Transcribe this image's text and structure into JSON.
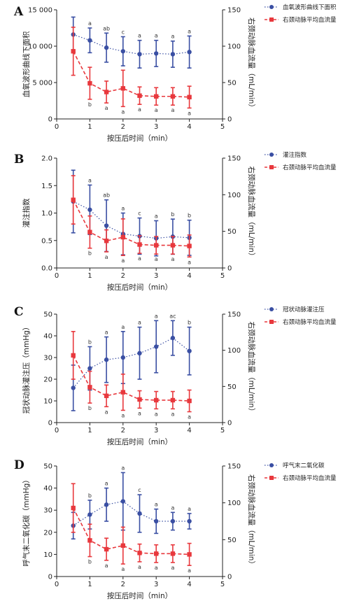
{
  "colors": {
    "blue": "#3a4fa3",
    "red": "#e8383d",
    "axis": "#222222"
  },
  "chart_data": [
    {
      "type": "line",
      "panel": "A",
      "xlabel": "按压后时间（min）",
      "ylabel_left": "血氧波形曲线下面积",
      "ylabel_right": "右颈动脉血流量（mL/min）",
      "xlim": [
        0,
        5
      ],
      "xticks": [
        "0",
        "1",
        "2",
        "3",
        "4",
        "5"
      ],
      "ylim_left": [
        0,
        15000
      ],
      "yticks_left": [
        "0",
        "5 000",
        "10 000",
        "15 000"
      ],
      "ylim_right": [
        0,
        150
      ],
      "yticks_right": [
        "0",
        "50",
        "100",
        "150"
      ],
      "x": [
        0.5,
        1,
        1.5,
        2,
        2.5,
        3,
        3.5,
        4
      ],
      "series": [
        {
          "name": "血氧波形曲线下面积",
          "axis": "left",
          "color": "#3a4fa3",
          "values": [
            11600,
            10800,
            9800,
            9300,
            8900,
            9000,
            8900,
            9200
          ],
          "err": [
            2400,
            1700,
            2000,
            2000,
            1900,
            1800,
            1800,
            2200
          ],
          "sig": [
            "",
            "a",
            "ab",
            "c",
            "a",
            "a",
            "a",
            "a"
          ]
        },
        {
          "name": "右颈动脉平均血流量",
          "axis": "right",
          "color": "#e8383d",
          "values": [
            93,
            49,
            37,
            42,
            32,
            31,
            31,
            30
          ],
          "err": [
            33,
            22,
            15,
            25,
            12,
            12,
            12,
            15
          ],
          "sig": [
            "",
            "b",
            "a",
            "a",
            "a",
            "a",
            "a",
            "a"
          ]
        }
      ]
    },
    {
      "type": "line",
      "panel": "B",
      "xlabel": "按压后时间（min）",
      "ylabel_left": "灌注指数",
      "ylabel_right": "右颈动脉血流量（mL/min）",
      "xlim": [
        0,
        5
      ],
      "xticks": [
        "0",
        "1",
        "2",
        "3",
        "4",
        "5"
      ],
      "ylim_left": [
        0,
        2
      ],
      "yticks_left": [
        "0.0",
        "0.5",
        "1.0",
        "1.5",
        "2.0"
      ],
      "ylim_right": [
        0,
        150
      ],
      "yticks_right": [
        "0",
        "50",
        "100",
        "150"
      ],
      "x": [
        0.5,
        1,
        1.5,
        2,
        2.5,
        3,
        3.5,
        4
      ],
      "series": [
        {
          "name": "灌注指数",
          "axis": "left",
          "color": "#3a4fa3",
          "values": [
            1.21,
            1.06,
            0.77,
            0.62,
            0.58,
            0.54,
            0.57,
            0.55
          ],
          "err": [
            0.57,
            0.45,
            0.47,
            0.38,
            0.33,
            0.32,
            0.32,
            0.32
          ],
          "sig": [
            "",
            "a",
            "ab",
            "a",
            "c",
            "a",
            "b",
            "b"
          ]
        },
        {
          "name": "右颈动脉平均血流量",
          "axis": "right",
          "color": "#e8383d",
          "values": [
            93,
            49,
            37,
            42,
            32,
            31,
            31,
            30
          ],
          "err": [
            33,
            22,
            15,
            25,
            12,
            12,
            12,
            15
          ],
          "sig": [
            "",
            "b",
            "a",
            "a",
            "a",
            "a",
            "a",
            "a"
          ]
        }
      ]
    },
    {
      "type": "line",
      "panel": "C",
      "xlabel": "按压后时间（min）",
      "ylabel_left": "冠状动脉灌注压（mmHg）",
      "ylabel_right": "右颈动脉血流量（mL/min）",
      "xlim": [
        0,
        5
      ],
      "xticks": [
        "0",
        "1",
        "2",
        "3",
        "4",
        "5"
      ],
      "ylim_left": [
        0,
        50
      ],
      "yticks_left": [
        "0",
        "10",
        "20",
        "30",
        "40",
        "50"
      ],
      "ylim_right": [
        0,
        150
      ],
      "yticks_right": [
        "0",
        "50",
        "100",
        "150"
      ],
      "x": [
        0.5,
        1,
        1.5,
        2,
        2.5,
        3,
        3.5,
        4
      ],
      "series": [
        {
          "name": "冠状动脉灌注压",
          "axis": "left",
          "color": "#3a4fa3",
          "values": [
            16,
            25,
            29,
            30,
            32,
            35,
            39,
            33
          ],
          "err": [
            10.5,
            10,
            10.5,
            12,
            12,
            12,
            8,
            11
          ],
          "sig": [
            "",
            "b",
            "a",
            "a",
            "a",
            "a",
            "ac",
            "b"
          ]
        },
        {
          "name": "右颈动脉平均血流量",
          "axis": "right",
          "color": "#e8383d",
          "values": [
            93,
            49,
            37,
            42,
            32,
            31,
            31,
            30
          ],
          "err": [
            33,
            22,
            15,
            25,
            12,
            12,
            12,
            15
          ],
          "sig": [
            "",
            "b",
            "a",
            "a",
            "a",
            "a",
            "a",
            "a"
          ]
        }
      ]
    },
    {
      "type": "line",
      "panel": "D",
      "xlabel": "按压后时间（min）",
      "ylabel_left": "呼气末二氧化碳（mmHg）",
      "ylabel_right": "右颈动脉血流量（mL/min）",
      "xlim": [
        0,
        5
      ],
      "xticks": [
        "0",
        "1",
        "2",
        "3",
        "4",
        "5"
      ],
      "ylim_left": [
        0,
        50
      ],
      "yticks_left": [
        "0",
        "10",
        "20",
        "30",
        "40",
        "50"
      ],
      "ylim_right": [
        0,
        150
      ],
      "yticks_right": [
        "0",
        "50",
        "100",
        "150"
      ],
      "x": [
        0.5,
        1,
        1.5,
        2,
        2.5,
        3,
        3.5,
        4
      ],
      "series": [
        {
          "name": "呼气末二氧化碳",
          "axis": "left",
          "color": "#3a4fa3",
          "values": [
            23,
            28,
            32.5,
            34,
            28.5,
            25,
            25,
            25
          ],
          "err": [
            6,
            6.5,
            7.5,
            13,
            8.5,
            5.5,
            4,
            3.5
          ],
          "sig": [
            "",
            "b",
            "a",
            "a",
            "c",
            "a",
            "a",
            "a"
          ]
        },
        {
          "name": "右颈动脉平均血流量",
          "axis": "right",
          "color": "#e8383d",
          "values": [
            93,
            49,
            37,
            42,
            32,
            31,
            31,
            30
          ],
          "err": [
            33,
            22,
            15,
            25,
            12,
            12,
            12,
            15
          ],
          "sig": [
            "",
            "b",
            "a",
            "a",
            "a",
            "a",
            "a",
            "a"
          ]
        }
      ]
    }
  ]
}
